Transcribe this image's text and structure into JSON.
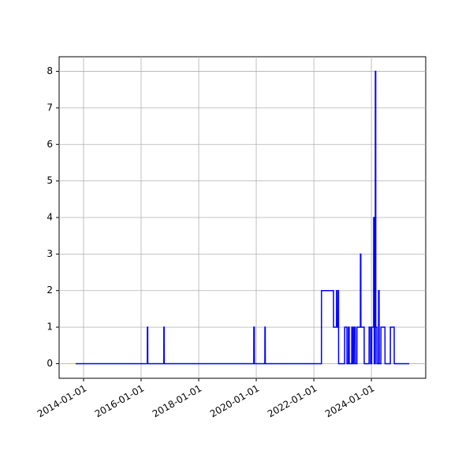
{
  "chart_data": {
    "type": "line",
    "color": "#0000ff",
    "grid": true,
    "x": [
      "2013-09-22",
      "2016-03-20",
      "2016-03-21",
      "2016-03-25",
      "2016-03-26",
      "2016-10-15",
      "2016-10-16",
      "2016-10-20",
      "2016-10-21",
      "2019-11-30",
      "2019-12-01",
      "2019-12-08",
      "2019-12-09",
      "2020-04-19",
      "2020-04-20",
      "2020-04-24",
      "2020-04-25",
      "2022-04-07",
      "2022-04-08",
      "2022-09-07",
      "2022-09-08",
      "2022-10-15",
      "2022-10-16",
      "2022-10-20",
      "2022-10-21",
      "2022-11-05",
      "2022-11-06",
      "2022-11-10",
      "2022-11-11",
      "2023-01-26",
      "2023-01-27",
      "2023-02-24",
      "2023-02-25",
      "2023-03-14",
      "2023-03-15",
      "2023-03-25",
      "2023-03-26",
      "2023-04-26",
      "2023-04-27",
      "2023-05-10",
      "2023-05-11",
      "2023-05-25",
      "2023-05-26",
      "2023-06-10",
      "2023-06-11",
      "2023-07-01",
      "2023-07-02",
      "2023-08-14",
      "2023-08-15",
      "2023-08-20",
      "2023-08-21",
      "2023-10-01",
      "2023-10-02",
      "2023-12-02",
      "2023-12-03",
      "2023-12-20",
      "2023-12-21",
      "2024-01-05",
      "2024-01-06",
      "2024-01-29",
      "2024-01-30",
      "2024-02-05",
      "2024-02-06",
      "2024-02-19",
      "2024-02-20",
      "2024-02-25",
      "2024-02-26",
      "2024-03-10",
      "2024-03-11",
      "2024-03-31",
      "2024-04-01",
      "2024-04-08",
      "2024-04-09",
      "2024-04-30",
      "2024-05-01",
      "2024-06-21",
      "2024-06-22",
      "2024-08-28",
      "2024-08-29",
      "2024-10-16",
      "2024-10-17",
      "2025-04-25"
    ],
    "values": [
      0,
      0,
      1,
      1,
      0,
      0,
      1,
      1,
      0,
      0,
      1,
      1,
      0,
      0,
      1,
      1,
      0,
      0,
      2,
      2,
      1,
      1,
      2,
      2,
      1,
      1,
      2,
      2,
      0,
      0,
      1,
      1,
      0,
      0,
      1,
      1,
      0,
      0,
      1,
      1,
      0,
      0,
      1,
      1,
      0,
      0,
      1,
      1,
      3,
      3,
      1,
      1,
      0,
      0,
      1,
      1,
      0,
      0,
      1,
      1,
      4,
      4,
      0,
      0,
      8,
      8,
      1,
      1,
      0,
      0,
      2,
      2,
      0,
      0,
      1,
      1,
      0,
      0,
      1,
      1,
      0,
      0
    ],
    "xlim": [
      "2013-02-25",
      "2025-11-20"
    ],
    "xticks": [
      "2014-01-01",
      "2016-01-01",
      "2018-01-01",
      "2020-01-01",
      "2022-01-01",
      "2024-01-01"
    ],
    "ylim": [
      -0.4,
      8.4
    ],
    "yticks": [
      0,
      1,
      2,
      3,
      4,
      5,
      6,
      7,
      8
    ]
  }
}
